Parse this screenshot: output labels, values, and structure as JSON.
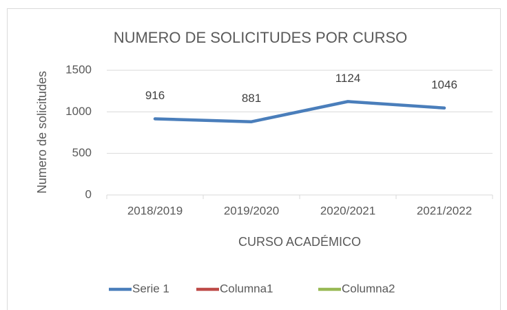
{
  "chart_data": {
    "type": "line",
    "title": "NUMERO DE SOLICITUDES POR CURSO",
    "xlabel": "CURSO ACADÉMICO",
    "ylabel": "Numero de solicitudes",
    "categories": [
      "2018/2019",
      "2019/2020",
      "2020/2021",
      "2021/2022"
    ],
    "series": [
      {
        "name": "Serie 1",
        "color": "#4a7ebb",
        "values": [
          916,
          881,
          1124,
          1046
        ],
        "data_labels": true
      },
      {
        "name": "Columna1",
        "color": "#be4b48",
        "values": [
          null,
          null,
          null,
          null
        ]
      },
      {
        "name": "Columna2",
        "color": "#98b954",
        "values": [
          null,
          null,
          null,
          null
        ]
      }
    ],
    "ylim": [
      0,
      1500
    ],
    "yticks": [
      0,
      500,
      1000,
      1500
    ],
    "grid": true,
    "legend": "bottom"
  }
}
